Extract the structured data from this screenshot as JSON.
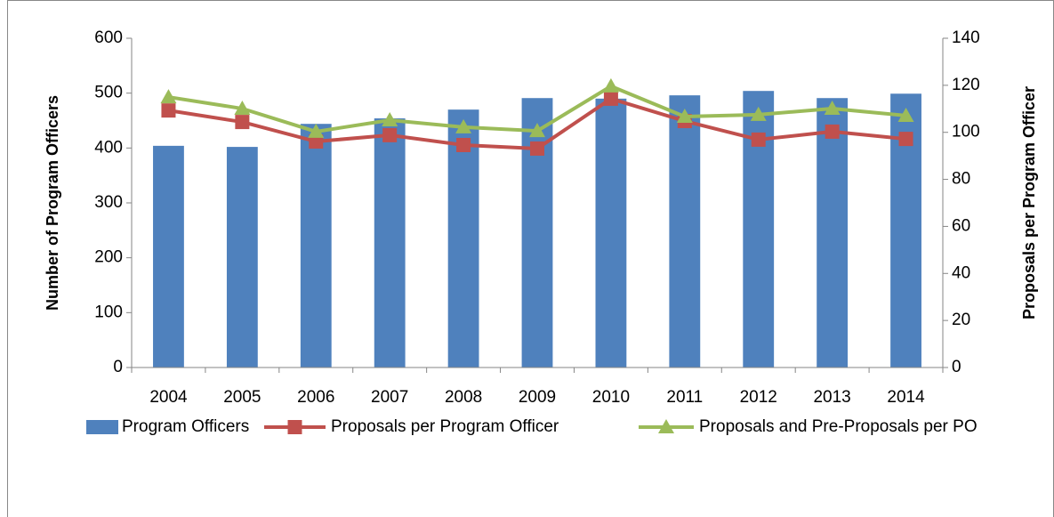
{
  "chart_data": {
    "type": "bar_line",
    "categories": [
      "2004",
      "2005",
      "2006",
      "2007",
      "2008",
      "2009",
      "2010",
      "2011",
      "2012",
      "2013",
      "2014"
    ],
    "ylabel": "Number of Program Officers",
    "y2label": "Proposals per Program Officer",
    "ylim": [
      0,
      600
    ],
    "yticks": [
      0,
      100,
      200,
      300,
      400,
      500,
      600
    ],
    "y2lim": [
      0,
      140
    ],
    "y2ticks": [
      0,
      20,
      40,
      60,
      80,
      100,
      120,
      140
    ],
    "series": [
      {
        "name": "Program Officers",
        "type": "bar",
        "color": "#4f81bd",
        "values": [
          404,
          402,
          444,
          454,
          470,
          491,
          490,
          496,
          504,
          491,
          499
        ]
      },
      {
        "name": "Proposals per Program Officer",
        "type": "line",
        "marker": "square",
        "axis": "y2",
        "color": "#c0504d",
        "values": [
          109.3,
          104.4,
          96.1,
          98.8,
          94.6,
          93.1,
          114.3,
          104.8,
          96.9,
          100.3,
          97.2
        ]
      },
      {
        "name": "Proposals and Pre-Proposals per PO",
        "type": "line",
        "marker": "triangle",
        "axis": "y2",
        "color": "#9bbb59",
        "values": [
          115,
          110.1,
          100.3,
          105.2,
          102.2,
          100.6,
          119.6,
          106.7,
          107.5,
          110.1,
          107.1
        ]
      }
    ],
    "legend": "bottom"
  }
}
